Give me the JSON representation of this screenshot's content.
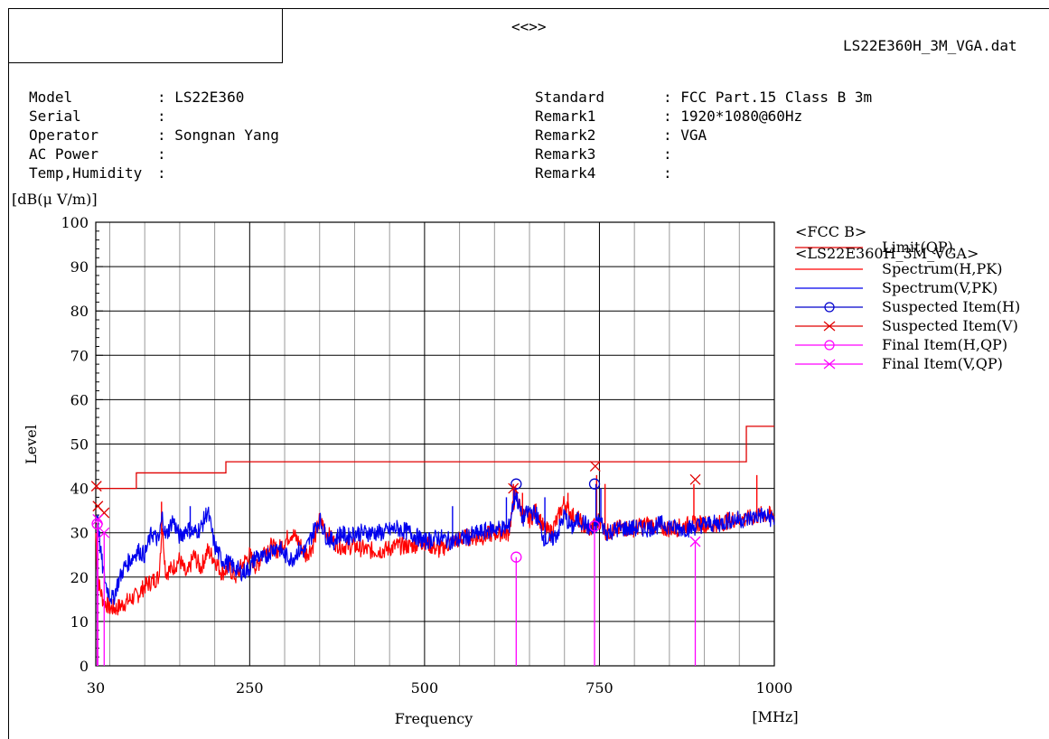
{
  "header": {
    "center_mark": "<<>>",
    "filename": "LS22E360H_3M_VGA.dat"
  },
  "info_left": [
    {
      "label": "Model",
      "value": ": LS22E360"
    },
    {
      "label": "Serial",
      "value": ":"
    },
    {
      "label": "Operator",
      "value": ": Songnan Yang"
    },
    {
      "label": "AC Power",
      "value": ":"
    },
    {
      "label": "Temp,Humidity",
      "value": ":"
    }
  ],
  "info_right": [
    {
      "label": "Standard",
      "value": ": FCC Part.15 Class B 3m"
    },
    {
      "label": "Remark1",
      "value": ": 1920*1080@60Hz"
    },
    {
      "label": "Remark2",
      "value": ": VGA"
    },
    {
      "label": "Remark3",
      "value": ":"
    },
    {
      "label": "Remark4",
      "value": ":"
    }
  ],
  "chart_data": {
    "type": "line",
    "title": "",
    "xlabel": "Frequency",
    "xunit": "[MHz]",
    "ylabel": "Level",
    "yunit": "[dB(μ V/m)]",
    "xlim": [
      30,
      1000
    ],
    "ylim": [
      0,
      100
    ],
    "xticks": [
      30,
      250,
      500,
      750,
      1000
    ],
    "yticks": [
      0,
      10,
      20,
      30,
      40,
      50,
      60,
      70,
      80,
      90,
      100
    ],
    "grid": true,
    "colors": {
      "limit": "#e00000",
      "spectrum_h": "#ff0000",
      "spectrum_v": "#0000ee",
      "suspected_h": "#0000cc",
      "suspected_v": "#e00000",
      "final": "#ff00ff"
    },
    "legend": {
      "placement": "right",
      "groups": [
        {
          "title": "<FCC B>",
          "entries": [
            {
              "key": "limit",
              "label": "Limit(QP)",
              "marker": "line"
            }
          ]
        },
        {
          "title": "<LS22E360H_3M_VGA>",
          "entries": [
            {
              "key": "spectrum_h",
              "label": "Spectrum(H,PK)",
              "marker": "line"
            },
            {
              "key": "spectrum_v",
              "label": "Spectrum(V,PK)",
              "marker": "line"
            },
            {
              "key": "suspected_h",
              "label": "Suspected Item(H)",
              "marker": "circle"
            },
            {
              "key": "suspected_v",
              "label": "Suspected Item(V)",
              "marker": "cross"
            },
            {
              "key": "final",
              "label": "Final Item(H,QP)",
              "marker": "circle"
            },
            {
              "key": "final",
              "label": "Final Item(V,QP)",
              "marker": "cross"
            }
          ]
        }
      ]
    },
    "limit_qp": [
      {
        "x": [
          30,
          88
        ],
        "y": 40.0
      },
      {
        "x": [
          88,
          216
        ],
        "y": 43.5
      },
      {
        "x": [
          216,
          960
        ],
        "y": 46.0
      },
      {
        "x": [
          960,
          1000
        ],
        "y": 54.0
      }
    ],
    "spectrum_h": {
      "x": [
        30,
        32,
        35,
        40,
        45,
        50,
        60,
        70,
        80,
        90,
        100,
        110,
        120,
        125,
        130,
        140,
        150,
        160,
        170,
        180,
        190,
        200,
        210,
        220,
        230,
        240,
        250,
        260,
        270,
        280,
        290,
        300,
        310,
        320,
        330,
        340,
        350,
        360,
        370,
        380,
        400,
        420,
        440,
        460,
        480,
        500,
        520,
        540,
        560,
        580,
        600,
        620,
        630,
        640,
        650,
        660,
        670,
        680,
        690,
        700,
        710,
        720,
        730,
        740,
        750,
        760,
        780,
        800,
        820,
        840,
        860,
        880,
        900,
        920,
        940,
        960,
        980,
        1000
      ],
      "y": [
        30,
        22,
        18,
        15,
        14,
        13,
        13,
        14,
        15,
        16,
        18,
        19,
        20,
        32,
        21,
        22,
        24,
        20,
        25,
        22,
        26,
        24,
        21,
        22,
        20,
        23,
        25,
        22,
        26,
        27,
        26,
        28,
        30,
        28,
        25,
        27,
        33,
        30,
        28,
        27,
        27,
        26,
        26,
        27,
        27,
        28,
        26,
        28,
        29,
        29,
        30,
        30,
        39,
        34,
        33,
        35,
        31,
        30,
        33,
        37,
        34,
        33,
        31,
        31,
        33,
        30,
        31,
        31,
        32,
        31,
        31,
        32,
        32,
        32,
        33,
        33,
        34,
        34
      ]
    },
    "spectrum_v": {
      "x": [
        30,
        33,
        36,
        40,
        45,
        50,
        55,
        60,
        70,
        80,
        90,
        100,
        110,
        120,
        125,
        130,
        140,
        150,
        160,
        170,
        180,
        190,
        200,
        210,
        220,
        230,
        240,
        250,
        260,
        270,
        280,
        290,
        300,
        310,
        320,
        330,
        340,
        350,
        360,
        370,
        380,
        390,
        400,
        420,
        440,
        460,
        480,
        500,
        520,
        540,
        560,
        580,
        600,
        620,
        630,
        640,
        650,
        660,
        670,
        680,
        690,
        700,
        710,
        720,
        730,
        740,
        750,
        760,
        780,
        800,
        820,
        840,
        860,
        880,
        900,
        920,
        940,
        960,
        980,
        1000
      ],
      "y": [
        33,
        34,
        27,
        22,
        18,
        16,
        15,
        18,
        22,
        24,
        26,
        25,
        30,
        28,
        34,
        29,
        33,
        29,
        31,
        30,
        31,
        35,
        27,
        24,
        23,
        22,
        21,
        22,
        25,
        24,
        26,
        27,
        25,
        24,
        26,
        26,
        30,
        33,
        29,
        28,
        30,
        29,
        30,
        30,
        30,
        31,
        30,
        28,
        29,
        28,
        29,
        30,
        31,
        31,
        39,
        33,
        35,
        34,
        29,
        28,
        30,
        34,
        31,
        33,
        32,
        30,
        33,
        30,
        31,
        31,
        31,
        32,
        31,
        31,
        32,
        32,
        33,
        33,
        34,
        33
      ]
    },
    "spikes_h": [
      {
        "x": 124,
        "y": 37
      },
      {
        "x": 627,
        "y": 41
      },
      {
        "x": 640,
        "y": 39
      },
      {
        "x": 705,
        "y": 39
      },
      {
        "x": 746,
        "y": 43
      },
      {
        "x": 758,
        "y": 41
      },
      {
        "x": 885,
        "y": 41
      },
      {
        "x": 975,
        "y": 43
      }
    ],
    "spikes_v": [
      {
        "x": 165,
        "y": 36
      },
      {
        "x": 540,
        "y": 36
      },
      {
        "x": 617,
        "y": 38
      },
      {
        "x": 628,
        "y": 40
      },
      {
        "x": 672,
        "y": 38
      },
      {
        "x": 745,
        "y": 41
      },
      {
        "x": 752,
        "y": 40
      }
    ],
    "suspected_h": [
      {
        "x": 631,
        "y": 41.0
      },
      {
        "x": 743,
        "y": 41.0
      }
    ],
    "suspected_v": [
      {
        "x": 31,
        "y": 40.5
      },
      {
        "x": 33,
        "y": 36.0
      },
      {
        "x": 42,
        "y": 34.5
      },
      {
        "x": 627,
        "y": 40.0
      },
      {
        "x": 744,
        "y": 45.0
      },
      {
        "x": 887,
        "y": 42.0
      }
    ],
    "final_h": [
      {
        "x": 32,
        "y": 32.0
      },
      {
        "x": 631,
        "y": 24.5
      },
      {
        "x": 743,
        "y": 31.5
      }
    ],
    "final_v": [
      {
        "x": 33,
        "y": 33.0
      },
      {
        "x": 42,
        "y": 30.0
      },
      {
        "x": 887,
        "y": 28.0
      }
    ]
  }
}
